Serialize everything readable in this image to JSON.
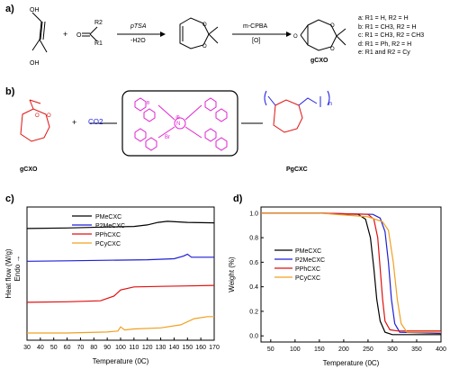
{
  "panels": {
    "a": "a)",
    "b": "b)",
    "c": "c)",
    "d": "d)"
  },
  "scheme_a": {
    "reagent1_text": "OH / HO",
    "plus": "+",
    "carbonyl_r1": "R1",
    "carbonyl_r2": "R2",
    "step1_top": "pTSA",
    "step1_bottom": "-H2O",
    "step2_top": "m-CPBA",
    "step2_bottom": "[O]",
    "product_label": "gCXO",
    "substituents": [
      "a: R1 = H,      R2 = H",
      "b: R1 = CH3, R2 = H",
      "c: R1 = CH3, R2 = CH3",
      "d: R1 = Ph,   R2 = H",
      "e: R1 and R2 = Cy"
    ]
  },
  "scheme_b": {
    "plus": "+",
    "co2": "CO2",
    "monomer_label": "gCXO",
    "polymer_label": "PgCXC",
    "catalyst_charge": "⊕",
    "catalyst_counterion": "Br",
    "catalyst_n": "N",
    "catalyst_b_label": "B",
    "subscript_n": "n"
  },
  "colors": {
    "Me": "#000000",
    "2Me": "#1f1fd6",
    "Ph": "#e01010",
    "Cy": "#f0a020",
    "magenta": "#e020d0",
    "blue": "#2020e0"
  },
  "legend": {
    "c": [
      "PMeCXC",
      "P2MeCXC",
      "PPhCXC",
      "PCyCXC"
    ],
    "d": [
      "PMeCXC",
      "P2MeCXC",
      "PPhCXC",
      "PCyCXC"
    ]
  },
  "chart_data": [
    {
      "type": "line",
      "panel": "c",
      "xlabel": "Temperature (0C)",
      "ylabel": "Heat flow (W/g)",
      "ylabel2": "Endo →",
      "xlim": [
        30,
        170
      ],
      "xticks": [
        "30",
        "40",
        "50",
        "60",
        "70",
        "80",
        "90",
        "100",
        "110",
        "120",
        "130",
        "140",
        "150",
        "160",
        "170"
      ],
      "grid": false,
      "legend_position": "top-left",
      "series": [
        {
          "name": "PMeCXC",
          "x": [
            30,
            60,
            90,
            110,
            120,
            128,
            135,
            150,
            170
          ],
          "y": [
            0.94,
            0.945,
            0.955,
            0.96,
            0.975,
            1.0,
            1.01,
            1.0,
            0.995
          ]
        },
        {
          "name": "P2MeCXC",
          "x": [
            30,
            60,
            90,
            120,
            140,
            147,
            150,
            153,
            160,
            170
          ],
          "y": [
            0.62,
            0.625,
            0.63,
            0.635,
            0.645,
            0.67,
            0.69,
            0.66,
            0.66,
            0.66
          ]
        },
        {
          "name": "PPhCXC",
          "x": [
            30,
            60,
            85,
            95,
            100,
            110,
            130,
            150,
            170
          ],
          "y": [
            0.22,
            0.225,
            0.235,
            0.28,
            0.34,
            0.37,
            0.375,
            0.38,
            0.385
          ]
        },
        {
          "name": "PCyCXC",
          "x": [
            30,
            60,
            90,
            98,
            100,
            103,
            110,
            130,
            145,
            155,
            165,
            170
          ],
          "y": [
            -0.08,
            -0.08,
            -0.07,
            -0.06,
            -0.02,
            -0.05,
            -0.04,
            -0.03,
            0.0,
            0.06,
            0.08,
            0.08
          ]
        }
      ]
    },
    {
      "type": "line",
      "panel": "d",
      "xlabel": "Temperature (0C)",
      "ylabel": "Weight (%)",
      "xlim": [
        30,
        400
      ],
      "ylim": [
        -0.05,
        1.05
      ],
      "xticks": [
        "50",
        "100",
        "150",
        "200",
        "250",
        "300",
        "350",
        "400"
      ],
      "yticks": [
        "0.0",
        "0.2",
        "0.4",
        "0.6",
        "0.8",
        "1.0"
      ],
      "grid": false,
      "legend_position": "center-left",
      "series": [
        {
          "name": "PMeCXC",
          "x": [
            30,
            150,
            230,
            245,
            255,
            262,
            268,
            275,
            285,
            300,
            400
          ],
          "y": [
            1.0,
            1.0,
            0.99,
            0.95,
            0.8,
            0.55,
            0.3,
            0.12,
            0.03,
            0.01,
            0.01
          ]
        },
        {
          "name": "P2MeCXC",
          "x": [
            30,
            150,
            260,
            275,
            285,
            292,
            298,
            305,
            315,
            400
          ],
          "y": [
            1.0,
            1.0,
            0.99,
            0.96,
            0.85,
            0.6,
            0.3,
            0.1,
            0.03,
            0.02
          ]
        },
        {
          "name": "PPhCXC",
          "x": [
            30,
            150,
            250,
            262,
            270,
            275,
            280,
            285,
            295,
            310,
            400
          ],
          "y": [
            1.0,
            1.0,
            0.99,
            0.95,
            0.8,
            0.55,
            0.3,
            0.12,
            0.05,
            0.04,
            0.04
          ]
        },
        {
          "name": "PCyCXC",
          "x": [
            30,
            150,
            250,
            280,
            292,
            302,
            310,
            318,
            330,
            400
          ],
          "y": [
            1.0,
            1.0,
            0.97,
            0.93,
            0.86,
            0.6,
            0.3,
            0.1,
            0.03,
            0.03
          ]
        }
      ]
    }
  ]
}
